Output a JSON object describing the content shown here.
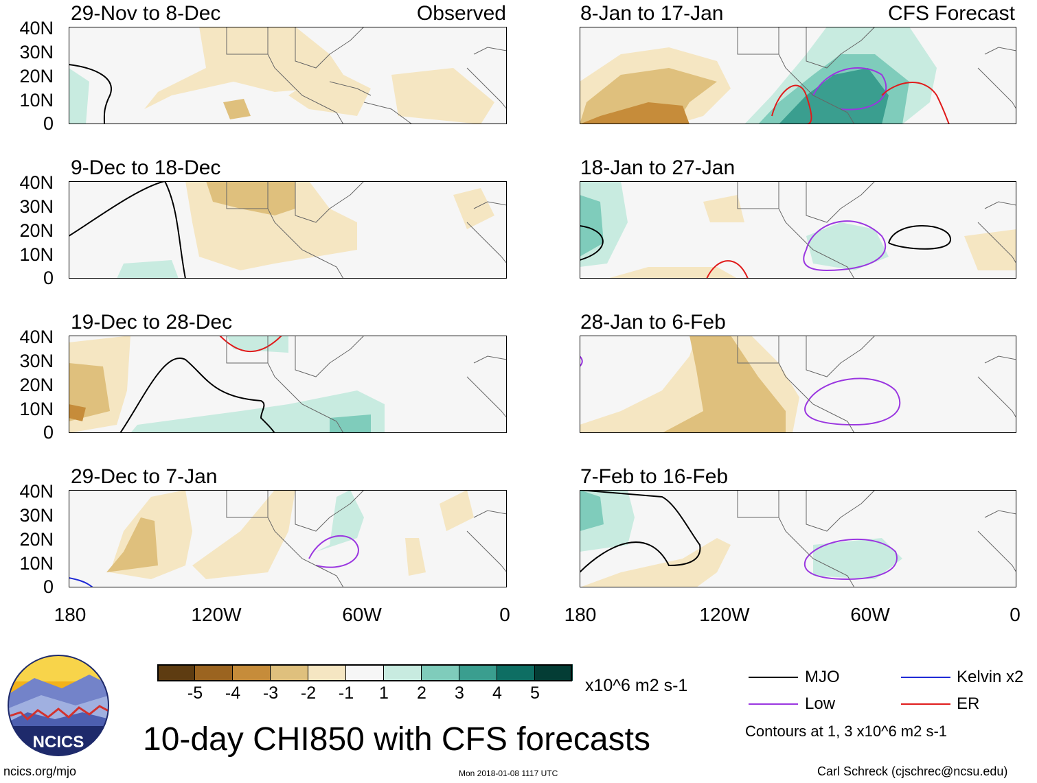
{
  "observed_label": "Observed",
  "forecast_label": "CFS Forecast",
  "panels": [
    {
      "title": "29-Nov to 8-Dec"
    },
    {
      "title": "9-Dec to 18-Dec"
    },
    {
      "title": "19-Dec to 28-Dec"
    },
    {
      "title": "29-Dec to 7-Jan"
    },
    {
      "title": "8-Jan to 17-Jan"
    },
    {
      "title": "18-Jan to 27-Jan"
    },
    {
      "title": "28-Jan to 6-Feb"
    },
    {
      "title": "7-Feb to 16-Feb"
    }
  ],
  "y_ticks": [
    "40N",
    "30N",
    "20N",
    "10N",
    "0"
  ],
  "x_ticks": [
    "180",
    "120W",
    "60W",
    "0"
  ],
  "colorbar": {
    "ticks": [
      "-5",
      "-4",
      "-3",
      "-2",
      "-1",
      "1",
      "2",
      "3",
      "4",
      "5"
    ],
    "colors": [
      "#5e3c11",
      "#9b6420",
      "#c68c3a",
      "#dfc07d",
      "#f5e6c2",
      "#f6f6f6",
      "#c8ebe0",
      "#7fccbb",
      "#3a9e8f",
      "#0e6e63",
      "#043d35"
    ],
    "units": "x10^6 m2 s-1"
  },
  "legend": {
    "mjo": "MJO",
    "kelvin": "Kelvin x2",
    "low": "Low",
    "er": "ER",
    "note": "Contours at 1, 3 x10^6 m2 s-1",
    "mjo_color": "#000000",
    "kelvin_color": "#1f2ad6",
    "low_color": "#9a36e0",
    "er_color": "#e01b1b"
  },
  "title": "10-day CHI850 with CFS forecasts",
  "footer": {
    "url": "ncics.org/mjo",
    "timestamp": "Mon 2018-01-08 1117 UTC",
    "author": "Carl Schreck (cjschrec@ncsu.edu)",
    "logo_text": "NCICS"
  }
}
